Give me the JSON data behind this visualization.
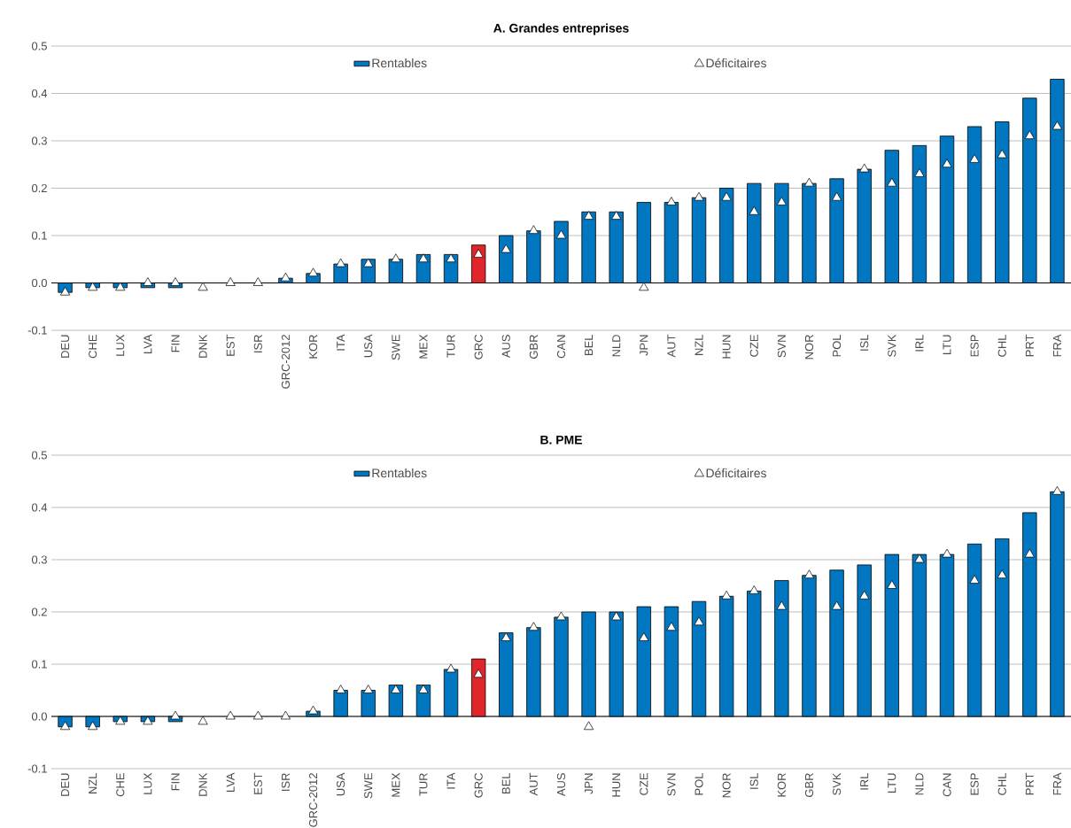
{
  "chart_data": [
    {
      "type": "bar",
      "title": "A. Grandes entreprises",
      "categories": [
        "DEU",
        "CHE",
        "LUX",
        "LVA",
        "FIN",
        "DNK",
        "EST",
        "ISR",
        "GRC-2012",
        "KOR",
        "ITA",
        "USA",
        "SWE",
        "MEX",
        "TUR",
        "GRC",
        "AUS",
        "GBR",
        "CAN",
        "BEL",
        "NLD",
        "JPN",
        "AUT",
        "NZL",
        "HUN",
        "CZE",
        "SVN",
        "NOR",
        "POL",
        "ISL",
        "SVK",
        "IRL",
        "LTU",
        "ESP",
        "CHL",
        "PRT",
        "FRA"
      ],
      "series": [
        {
          "name": "Rentables",
          "color": "#0077c0",
          "colors": [
            "#0077c0",
            "#0077c0",
            "#0077c0",
            "#0077c0",
            "#0077c0",
            "#0077c0",
            "#0077c0",
            "#0077c0",
            "#0077c0",
            "#0077c0",
            "#0077c0",
            "#0077c0",
            "#0077c0",
            "#0077c0",
            "#0077c0",
            "#e0252b",
            "#0077c0",
            "#0077c0",
            "#0077c0",
            "#0077c0",
            "#0077c0",
            "#0077c0",
            "#0077c0",
            "#0077c0",
            "#0077c0",
            "#0077c0",
            "#0077c0",
            "#0077c0",
            "#0077c0",
            "#0077c0",
            "#0077c0",
            "#0077c0",
            "#0077c0",
            "#0077c0",
            "#0077c0",
            "#0077c0",
            "#0077c0"
          ],
          "values": [
            -0.02,
            -0.01,
            -0.01,
            -0.01,
            -0.01,
            0,
            0,
            0,
            0.01,
            0.02,
            0.04,
            0.05,
            0.05,
            0.06,
            0.06,
            0.08,
            0.1,
            0.11,
            0.13,
            0.15,
            0.15,
            0.17,
            0.17,
            0.18,
            0.2,
            0.21,
            0.21,
            0.21,
            0.22,
            0.24,
            0.28,
            0.29,
            0.31,
            0.33,
            0.34,
            0.39,
            0.43
          ]
        },
        {
          "name": "Déficitaires",
          "type": "scatter",
          "color": "#ffffff",
          "marker": "triangle",
          "values": [
            -0.02,
            -0.01,
            -0.01,
            0,
            0,
            -0.01,
            0,
            0,
            0.01,
            0.02,
            0.04,
            0.04,
            0.05,
            0.05,
            0.05,
            0.06,
            0.07,
            0.11,
            0.1,
            0.14,
            0.14,
            -0.01,
            0.17,
            0.18,
            0.18,
            0.15,
            0.17,
            0.21,
            0.18,
            0.24,
            0.21,
            0.23,
            0.25,
            0.26,
            0.27,
            0.31,
            0.33
          ]
        }
      ],
      "ylim": [
        -0.1,
        0.5
      ],
      "yticks": [
        -0.1,
        {
          "value": 0,
          "label": "0.0"
        },
        0.1,
        0.2,
        0.3,
        0.4,
        0.5
      ],
      "grid": "y",
      "legend": "top"
    },
    {
      "type": "bar",
      "title": "B. PME",
      "categories": [
        "DEU",
        "NZL",
        "CHE",
        "LUX",
        "FIN",
        "DNK",
        "LVA",
        "EST",
        "ISR",
        "GRC-2012",
        "USA",
        "SWE",
        "MEX",
        "TUR",
        "ITA",
        "GRC",
        "BEL",
        "AUT",
        "AUS",
        "JPN",
        "HUN",
        "CZE",
        "SVN",
        "POL",
        "NOR",
        "ISL",
        "KOR",
        "GBR",
        "SVK",
        "IRL",
        "LTU",
        "NLD",
        "CAN",
        "ESP",
        "CHL",
        "PRT",
        "FRA"
      ],
      "series": [
        {
          "name": "Rentables",
          "color": "#0077c0",
          "colors": [
            "#0077c0",
            "#0077c0",
            "#0077c0",
            "#0077c0",
            "#0077c0",
            "#0077c0",
            "#0077c0",
            "#0077c0",
            "#0077c0",
            "#0077c0",
            "#0077c0",
            "#0077c0",
            "#0077c0",
            "#0077c0",
            "#0077c0",
            "#e0252b",
            "#0077c0",
            "#0077c0",
            "#0077c0",
            "#0077c0",
            "#0077c0",
            "#0077c0",
            "#0077c0",
            "#0077c0",
            "#0077c0",
            "#0077c0",
            "#0077c0",
            "#0077c0",
            "#0077c0",
            "#0077c0",
            "#0077c0",
            "#0077c0",
            "#0077c0",
            "#0077c0",
            "#0077c0",
            "#0077c0",
            "#0077c0"
          ],
          "values": [
            -0.02,
            -0.02,
            -0.01,
            -0.01,
            -0.01,
            0,
            0,
            0,
            0,
            0.01,
            0.05,
            0.05,
            0.06,
            0.06,
            0.09,
            0.11,
            0.16,
            0.17,
            0.19,
            0.2,
            0.2,
            0.21,
            0.21,
            0.22,
            0.23,
            0.24,
            0.26,
            0.27,
            0.28,
            0.29,
            0.31,
            0.31,
            0.31,
            0.33,
            0.34,
            0.39,
            0.43
          ]
        },
        {
          "name": "Déficitaires",
          "type": "scatter",
          "color": "#ffffff",
          "marker": "triangle",
          "values": [
            -0.02,
            -0.02,
            -0.01,
            -0.01,
            0,
            -0.01,
            0,
            0,
            0,
            0.01,
            0.05,
            0.05,
            0.05,
            0.05,
            0.09,
            0.08,
            0.15,
            0.17,
            0.19,
            -0.02,
            0.19,
            0.15,
            0.17,
            0.18,
            0.23,
            0.24,
            0.21,
            0.27,
            0.21,
            0.23,
            0.25,
            0.3,
            0.31,
            0.26,
            0.27,
            0.31,
            0.43
          ]
        }
      ],
      "ylim": [
        -0.1,
        0.5
      ],
      "yticks": [
        -0.1,
        {
          "value": 0,
          "label": "0.0"
        },
        0.1,
        0.2,
        0.3,
        0.4,
        0.5
      ],
      "grid": "y",
      "legend": "top"
    }
  ]
}
